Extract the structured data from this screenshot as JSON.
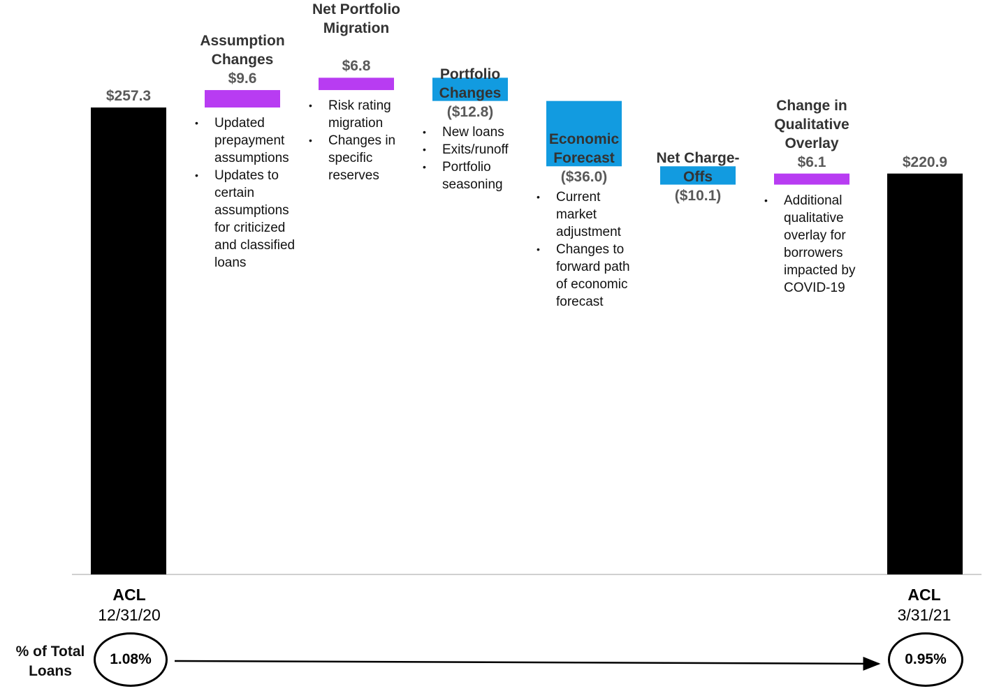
{
  "chart_data": {
    "type": "waterfall",
    "start": {
      "label": "ACL",
      "sublabel": "12/31/20",
      "value": 257.3,
      "value_label": "$257.3",
      "pct": "1.08%"
    },
    "end": {
      "label": "ACL",
      "sublabel": "3/31/21",
      "value": 220.9,
      "value_label": "$220.9",
      "pct": "0.95%"
    },
    "steps": [
      {
        "category": "Assumption Changes",
        "value": 9.6,
        "value_label": "$9.6",
        "color": "#b83cf2",
        "notes": [
          "Updated prepayment assumptions",
          "Updates to certain assumptions for criticized and classified loans"
        ]
      },
      {
        "category": "Net Portfolio Migration",
        "value": 6.8,
        "value_label": "$6.8",
        "color": "#b83cf2",
        "notes": [
          "Risk rating migration",
          "Changes in specific reserves"
        ]
      },
      {
        "category": "Portfolio Changes",
        "value": -12.8,
        "value_label": "($12.8)",
        "color": "#129be0",
        "notes": [
          "New loans",
          "Exits/runoff",
          "Portfolio seasoning"
        ]
      },
      {
        "category": "Economic Forecast",
        "value": -36.0,
        "value_label": "($36.0)",
        "color": "#129be0",
        "notes": [
          "Current market adjustment",
          "Changes to forward path of economic forecast"
        ]
      },
      {
        "category": "Net Charge-Offs",
        "value": -10.1,
        "value_label": "($10.1)",
        "color": "#129be0",
        "notes": []
      },
      {
        "category": "Change in Qualitative Overlay",
        "value": 6.1,
        "value_label": "$6.1",
        "color": "#b83cf2",
        "notes": [
          "Additional qualitative overlay for borrowers impacted by COVID-19"
        ]
      }
    ],
    "total_bar_color": "#000000",
    "pct_row_label": "% of Total Loans"
  }
}
